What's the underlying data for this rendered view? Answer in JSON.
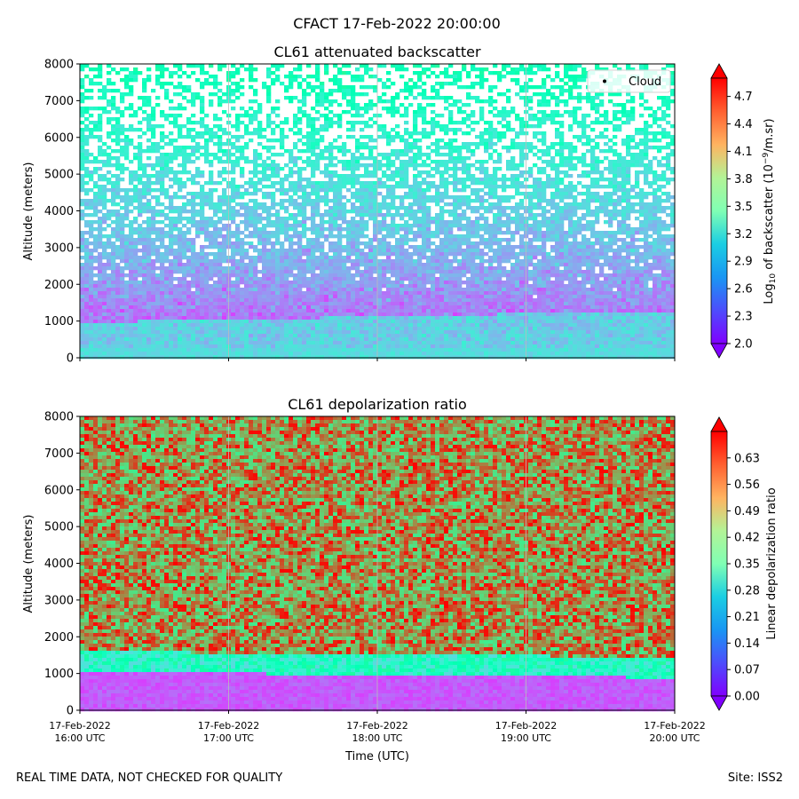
{
  "suptitle": "CFACT 17-Feb-2022 20:00:00",
  "footer": {
    "note": "REAL TIME DATA, NOT CHECKED FOR QUALITY",
    "site": "Site: ISS2"
  },
  "chart_data": [
    {
      "type": "heatmap",
      "title": "CL61 attenuated backscatter",
      "ylabel": "Altitude (meters)",
      "xlabel": "",
      "ylim": [
        0,
        8000
      ],
      "yticks": [
        "0",
        "1000",
        "2000",
        "3000",
        "4000",
        "5000",
        "6000",
        "7000",
        "8000"
      ],
      "xticks": [],
      "legend": {
        "label": "Cloud",
        "placement": "top-right"
      },
      "colorbar": {
        "label_prefix": "Log",
        "label_sub": "10",
        "label_mid": " of backscatter (10",
        "label_sup": "−9",
        "label_suffix": "/m.sr)",
        "range": [
          2.0,
          4.9
        ],
        "ticks": [
          "2.0",
          "2.3",
          "2.6",
          "2.9",
          "3.2",
          "3.5",
          "3.8",
          "4.1",
          "4.4",
          "4.7"
        ],
        "colormap": "rainbow"
      }
    },
    {
      "type": "heatmap",
      "title": "CL61 depolarization ratio",
      "ylabel": "Altitude (meters)",
      "xlabel": "Time (UTC)",
      "ylim": [
        0,
        8000
      ],
      "yticks": [
        "0",
        "1000",
        "2000",
        "3000",
        "4000",
        "5000",
        "6000",
        "7000",
        "8000"
      ],
      "xticks": [
        {
          "date": "17-Feb-2022",
          "time": "16:00 UTC"
        },
        {
          "date": "17-Feb-2022",
          "time": "17:00 UTC"
        },
        {
          "date": "17-Feb-2022",
          "time": "18:00 UTC"
        },
        {
          "date": "17-Feb-2022",
          "time": "19:00 UTC"
        },
        {
          "date": "17-Feb-2022",
          "time": "20:00 UTC"
        }
      ],
      "colorbar": {
        "label": "Linear depolarization ratio",
        "range": [
          0.0,
          0.7
        ],
        "ticks": [
          "0.00",
          "0.07",
          "0.14",
          "0.21",
          "0.28",
          "0.35",
          "0.42",
          "0.49",
          "0.56",
          "0.63"
        ],
        "colormap": "rainbow"
      }
    }
  ]
}
